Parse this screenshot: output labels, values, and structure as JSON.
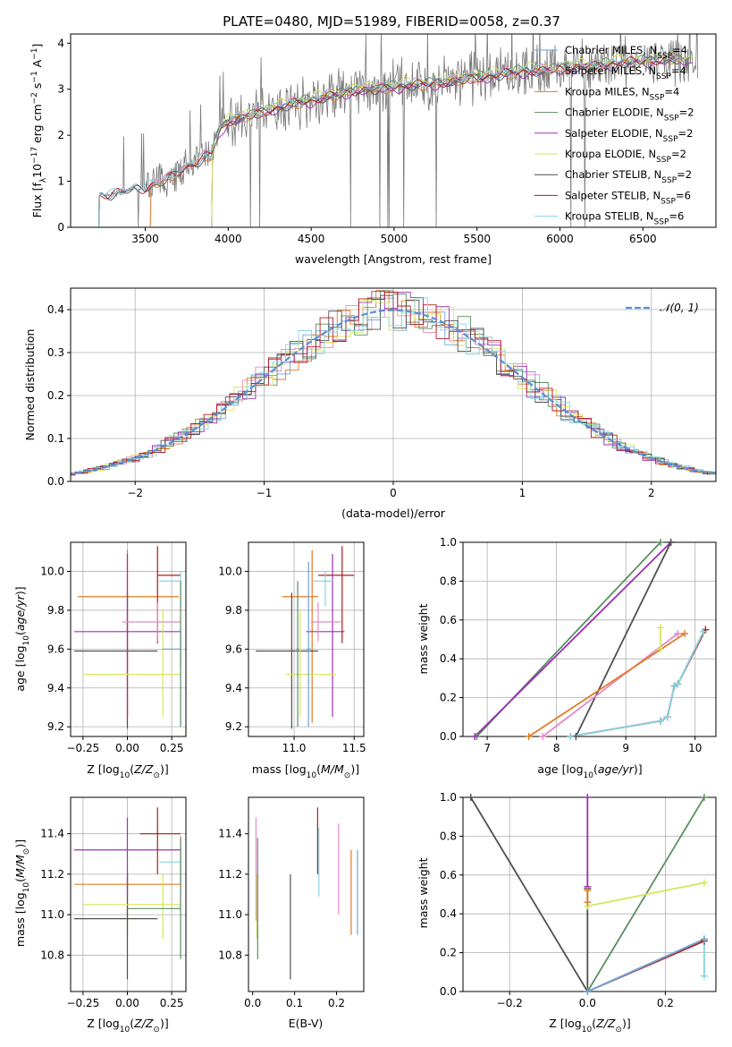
{
  "figure_title": "PLATE=0480, MJD=51989, FIBERID=0058, z=0.37",
  "colors": {
    "chabrier_miles": "#6fa3d9",
    "salpeter_miles": "#e58ac4",
    "kroupa_miles": "#e07b26",
    "chabrier_elodie": "#5a8f62",
    "salpeter_elodie": "#9b30b0",
    "kroupa_elodie": "#d6e65a",
    "chabrier_stelib": "#505050",
    "salpeter_stelib": "#b01c1c",
    "kroupa_stelib": "#86d6e0",
    "data": "#7a7a7a",
    "normal": "#5b8dd9"
  },
  "chart_data": [
    {
      "id": "spectrum",
      "type": "line",
      "xlabel": "wavelength [Angstrom, rest frame]",
      "ylabel": "Flux [f",
      "xlim": [
        3050,
        6940
      ],
      "ylim": [
        0,
        4.2
      ],
      "xticks": [
        3500,
        4000,
        4500,
        5000,
        5500,
        6000,
        6500
      ],
      "yticks": [
        0,
        1,
        2,
        3,
        4
      ],
      "grid": false,
      "legend_position": "top-right",
      "series": [
        {
          "key": "chabrier_miles",
          "name": "Chabrier MILES, N",
          "nssp": "=4",
          "range": [
            3220,
            6730
          ],
          "offset": 0.02
        },
        {
          "key": "salpeter_miles",
          "name": "Salpeter MILES, N",
          "nssp": "=4",
          "range": [
            3530,
            6730
          ],
          "offset": 0.05
        },
        {
          "key": "kroupa_miles",
          "name": "Kroupa MILES, N",
          "nssp": "=4",
          "range": [
            3530,
            6730
          ],
          "offset": -0.03
        },
        {
          "key": "chabrier_elodie",
          "name": "Chabrier ELODIE, N",
          "nssp": "=2",
          "range": [
            3900,
            6800
          ],
          "offset": 0.04
        },
        {
          "key": "salpeter_elodie",
          "name": "Salpeter ELODIE, N",
          "nssp": "=2",
          "range": [
            3900,
            6800
          ],
          "offset": -0.05
        },
        {
          "key": "kroupa_elodie",
          "name": "Kroupa ELODIE, N",
          "nssp": "=2",
          "range": [
            3900,
            6800
          ],
          "offset": 0.08
        },
        {
          "key": "chabrier_stelib",
          "name": "Chabrier STELIB, N",
          "nssp": "=2",
          "range": [
            3220,
            6720
          ],
          "offset": -0.02
        },
        {
          "key": "salpeter_stelib",
          "name": "Salpeter STELIB, N",
          "nssp": "=6",
          "range": [
            3220,
            6720
          ],
          "offset": 0.0
        },
        {
          "key": "kroupa_stelib",
          "name": "Kroupa STELIB, N",
          "nssp": "=6",
          "range": [
            3220,
            6720
          ],
          "offset": 0.03
        }
      ],
      "continuum_x": [
        3210,
        3220,
        3300,
        3400,
        3500,
        3600,
        3700,
        3800,
        3900,
        3950,
        4000,
        4100,
        4200,
        4300,
        4400,
        4500,
        4600,
        4700,
        4800,
        4900,
        5000,
        5100,
        5200,
        5300,
        5400,
        5500,
        5600,
        5700,
        5800,
        5900,
        6000,
        6100,
        6200,
        6300,
        6400,
        6500,
        6600,
        6700,
        6800
      ],
      "continuum_y": [
        0.6,
        0.68,
        0.72,
        0.8,
        0.85,
        1.0,
        1.2,
        1.4,
        1.6,
        2.1,
        2.3,
        2.4,
        2.5,
        2.6,
        2.7,
        2.75,
        2.85,
        2.9,
        3.0,
        3.0,
        3.05,
        3.1,
        3.1,
        3.15,
        3.2,
        3.25,
        3.3,
        3.35,
        3.4,
        3.4,
        3.45,
        3.5,
        3.5,
        3.55,
        3.6,
        3.6,
        3.65,
        3.65,
        3.6
      ]
    },
    {
      "id": "residuals",
      "type": "line",
      "xlabel": "(data-model)/error",
      "ylabel": "Normed distribution",
      "xlim": [
        -2.5,
        2.5
      ],
      "ylim": [
        0,
        0.45
      ],
      "xticks": [
        -2,
        -1,
        0,
        1,
        2
      ],
      "yticks": [
        0.0,
        0.1,
        0.2,
        0.3,
        0.4
      ],
      "grid": true,
      "legend_position": "top-right",
      "legend_label": "𝒩(0, 1)"
    },
    {
      "id": "age_vs_z",
      "type": "scatter",
      "xlabel": "Z [log",
      "ylabel": "age  [log",
      "xlim": [
        -0.32,
        0.33
      ],
      "ylim": [
        9.15,
        10.15
      ],
      "xticks": [
        -0.25,
        0.0,
        0.25
      ],
      "yticks": [
        9.2,
        9.4,
        9.6,
        9.8,
        10.0
      ],
      "grid": true,
      "points": [
        {
          "key": "kroupa_miles",
          "x": 0.0,
          "xerr": [
            0.28,
            0.29
          ],
          "y": 9.87,
          "yerr": [
            0.65,
            0.24
          ]
        },
        {
          "key": "chabrier_stelib",
          "x": 0.0,
          "xerr": [
            0.3,
            0.17
          ],
          "y": 9.59,
          "yerr": [
            0.4,
            0.3
          ]
        },
        {
          "key": "salpeter_elodie",
          "x": 0.0,
          "xerr": [
            0.3,
            0.3
          ],
          "y": 9.69,
          "yerr": [
            0.44,
            0.4
          ]
        },
        {
          "key": "salpeter_stelib",
          "x": 0.17,
          "xerr": [
            0.0,
            0.13
          ],
          "y": 9.98,
          "yerr": [
            0.35,
            0.15
          ]
        },
        {
          "key": "kroupa_elodie",
          "x": 0.2,
          "xerr": [
            0.45,
            0.1
          ],
          "y": 9.47,
          "yerr": [
            0.22,
            0.33
          ]
        },
        {
          "key": "kroupa_stelib",
          "x": 0.3,
          "xerr": [
            0.12,
            0.0
          ],
          "y": 9.95,
          "yerr": [
            0.13,
            0.05
          ]
        },
        {
          "key": "salpeter_miles",
          "x": 0.17,
          "xerr": [
            0.2,
            0.13
          ],
          "y": 9.74,
          "yerr": [
            0.1,
            0.1
          ]
        },
        {
          "key": "chabrier_miles",
          "x": 0.3,
          "xerr": [
            0.1,
            0.0
          ],
          "y": 9.6,
          "yerr": [
            0.1,
            0.1
          ]
        },
        {
          "key": "chabrier_elodie",
          "x": 0.3,
          "xerr": [
            0.0,
            0.0
          ],
          "y": 9.6,
          "yerr": [
            0.4,
            0.35
          ]
        }
      ]
    },
    {
      "id": "age_vs_mass",
      "type": "scatter",
      "xlabel": "mass [log",
      "ylabel": "",
      "xlim": [
        10.62,
        11.58
      ],
      "ylim": [
        9.15,
        10.15
      ],
      "xticks": [
        11.0,
        11.5
      ],
      "yticks": [
        9.2,
        9.4,
        9.6,
        9.8,
        10.0
      ],
      "grid": true,
      "points": [
        {
          "key": "kroupa_miles",
          "x": 11.15,
          "xerr": [
            0.25,
            0.05
          ],
          "y": 9.87,
          "yerr": [
            0.65,
            0.24
          ]
        },
        {
          "key": "chabrier_stelib",
          "x": 10.98,
          "xerr": [
            0.3,
            0.22
          ],
          "y": 9.59,
          "yerr": [
            0.4,
            0.3
          ]
        },
        {
          "key": "salpeter_elodie",
          "x": 11.32,
          "xerr": [
            0.22,
            0.1
          ],
          "y": 9.69,
          "yerr": [
            0.44,
            0.4
          ]
        },
        {
          "key": "salpeter_stelib",
          "x": 11.4,
          "xerr": [
            0.2,
            0.1
          ],
          "y": 9.98,
          "yerr": [
            0.35,
            0.15
          ]
        },
        {
          "key": "kroupa_elodie",
          "x": 11.05,
          "xerr": [
            0.12,
            0.3
          ],
          "y": 9.47,
          "yerr": [
            0.22,
            0.33
          ]
        },
        {
          "key": "kroupa_stelib",
          "x": 11.26,
          "xerr": [
            0.1,
            0.07
          ],
          "y": 9.95,
          "yerr": [
            0.13,
            0.05
          ]
        },
        {
          "key": "salpeter_miles",
          "x": 11.2,
          "xerr": [
            0.06,
            0.19
          ],
          "y": 9.74,
          "yerr": [
            0.1,
            0.1
          ]
        },
        {
          "key": "chabrier_miles",
          "x": 11.12,
          "xerr": [
            0.02,
            0.02
          ],
          "y": 9.6,
          "yerr": [
            0.4,
            0.45
          ]
        },
        {
          "key": "chabrier_elodie",
          "x": 11.03,
          "xerr": [
            0.01,
            0.01
          ],
          "y": 9.6,
          "yerr": [
            0.4,
            0.35
          ]
        }
      ]
    },
    {
      "id": "age_weights",
      "type": "line",
      "xlabel": "age  [log",
      "ylabel": "mass weight",
      "xlim": [
        6.65,
        10.3
      ],
      "ylim": [
        0,
        1
      ],
      "xticks": [
        7,
        8,
        9,
        10
      ],
      "yticks": [
        0.0,
        0.2,
        0.4,
        0.6,
        0.8,
        1.0
      ],
      "grid": true,
      "series": [
        {
          "key": "chabrier_elodie",
          "x": [
            6.85,
            9.5
          ],
          "y": [
            0.0,
            1.0
          ]
        },
        {
          "key": "salpeter_elodie",
          "x": [
            6.82,
            9.65
          ],
          "y": [
            0.0,
            1.0
          ]
        },
        {
          "key": "chabrier_stelib",
          "x": [
            8.28,
            9.65
          ],
          "y": [
            0.0,
            1.0
          ]
        },
        {
          "key": "salpeter_miles",
          "x": [
            7.8,
            9.75
          ],
          "y": [
            0.0,
            0.53
          ]
        },
        {
          "key": "kroupa_miles",
          "x": [
            7.6,
            9.85
          ],
          "y": [
            0.0,
            0.53
          ]
        },
        {
          "key": "kroupa_elodie",
          "x": [
            9.5,
            9.5
          ],
          "y": [
            0.45,
            0.56
          ]
        },
        {
          "key": "chabrier_miles",
          "x": [
            8.2,
            9.5,
            9.6,
            9.7,
            9.75,
            10.12
          ],
          "y": [
            0.0,
            0.08,
            0.1,
            0.26,
            0.27,
            0.54
          ]
        },
        {
          "key": "salpeter_stelib",
          "x": [
            8.2,
            9.5,
            9.6,
            9.7,
            9.75,
            10.15
          ],
          "y": [
            0.0,
            0.08,
            0.1,
            0.26,
            0.27,
            0.55
          ]
        },
        {
          "key": "kroupa_stelib",
          "x": [
            8.2,
            9.5,
            9.6,
            9.7,
            9.75,
            10.12
          ],
          "y": [
            0.0,
            0.08,
            0.1,
            0.26,
            0.27,
            0.54
          ]
        }
      ]
    },
    {
      "id": "mass_vs_z",
      "type": "scatter",
      "xlabel": "Z [log",
      "ylabel": "mass [log",
      "xlim": [
        -0.32,
        0.33
      ],
      "ylim": [
        10.62,
        11.58
      ],
      "xticks": [
        -0.25,
        0.0,
        0.25
      ],
      "yticks": [
        10.8,
        11.0,
        11.2,
        11.4
      ],
      "grid": true,
      "points": [
        {
          "key": "kroupa_miles",
          "x": 0.0,
          "xerr": [
            0.3,
            0.3
          ],
          "y": 11.15,
          "yerr": [
            0.25,
            0.05
          ]
        },
        {
          "key": "chabrier_stelib",
          "x": 0.0,
          "xerr": [
            0.3,
            0.17
          ],
          "y": 10.98,
          "yerr": [
            0.3,
            0.22
          ]
        },
        {
          "key": "salpeter_elodie",
          "x": 0.0,
          "xerr": [
            0.3,
            0.3
          ],
          "y": 11.32,
          "yerr": [
            0.22,
            0.16
          ]
        },
        {
          "key": "salpeter_stelib",
          "x": 0.17,
          "xerr": [
            0.1,
            0.13
          ],
          "y": 11.4,
          "yerr": [
            0.2,
            0.13
          ]
        },
        {
          "key": "kroupa_elodie",
          "x": 0.2,
          "xerr": [
            0.45,
            0.1
          ],
          "y": 11.05,
          "yerr": [
            0.17,
            0.15
          ]
        },
        {
          "key": "kroupa_stelib",
          "x": 0.3,
          "xerr": [
            0.12,
            0.0
          ],
          "y": 11.26,
          "yerr": [
            0.1,
            0.07
          ]
        },
        {
          "key": "salpeter_miles",
          "x": 0.3,
          "xerr": [
            0.0,
            0.0
          ],
          "y": 11.2,
          "yerr": [
            0.06,
            0.19
          ]
        },
        {
          "key": "chabrier_miles",
          "x": 0.3,
          "xerr": [
            0.0,
            0.0
          ],
          "y": 11.1,
          "yerr": [
            0.02,
            0.02
          ]
        },
        {
          "key": "chabrier_elodie",
          "x": 0.3,
          "xerr": [
            0.3,
            0.0
          ],
          "y": 11.03,
          "yerr": [
            0.25,
            0.35
          ]
        }
      ]
    },
    {
      "id": "mass_vs_ebv",
      "type": "scatter",
      "xlabel": "E(B-V)",
      "ylabel": "",
      "xlim": [
        -0.01,
        0.265
      ],
      "ylim": [
        10.62,
        11.58
      ],
      "xticks": [
        0.0,
        0.1,
        0.2
      ],
      "yticks": [
        10.8,
        11.0,
        11.2,
        11.4
      ],
      "grid": false,
      "points": [
        {
          "key": "salpeter_miles",
          "x": 0.008,
          "y": 11.32,
          "yerr": [
            0.35,
            0.16
          ]
        },
        {
          "key": "kroupa_elodie",
          "x": 0.01,
          "y": 11.05,
          "yerr": [
            0.17,
            0.15
          ]
        },
        {
          "key": "chabrier_elodie",
          "x": 0.012,
          "y": 11.03,
          "yerr": [
            0.25,
            0.35
          ]
        },
        {
          "key": "chabrier_stelib",
          "x": 0.09,
          "y": 10.98,
          "yerr": [
            0.3,
            0.22
          ]
        },
        {
          "key": "salpeter_stelib",
          "x": 0.155,
          "y": 11.4,
          "yerr": [
            0.2,
            0.13
          ]
        },
        {
          "key": "kroupa_stelib",
          "x": 0.158,
          "y": 11.26,
          "yerr": [
            0.17,
            0.17
          ]
        },
        {
          "key": "salpeter_miles",
          "x": 0.205,
          "y": 11.2,
          "yerr": [
            0.2,
            0.25
          ]
        },
        {
          "key": "kroupa_miles",
          "x": 0.235,
          "y": 11.15,
          "yerr": [
            0.25,
            0.17
          ]
        },
        {
          "key": "chabrier_miles",
          "x": 0.25,
          "y": 11.1,
          "yerr": [
            0.2,
            0.22
          ]
        }
      ]
    },
    {
      "id": "z_weights",
      "type": "line",
      "xlabel": "Z [log",
      "ylabel": "mass weight",
      "xlim": [
        -0.32,
        0.33
      ],
      "ylim": [
        0,
        1
      ],
      "xticks": [
        -0.2,
        0.0,
        0.2
      ],
      "yticks": [
        0.0,
        0.2,
        0.4,
        0.6,
        0.8,
        1.0
      ],
      "grid": true,
      "series": [
        {
          "key": "chabrier_stelib",
          "x": [
            -0.3,
            0.0,
            0.0
          ],
          "y": [
            1.0,
            0.0,
            0.53
          ]
        },
        {
          "key": "chabrier_elodie",
          "x": [
            0.0,
            0.3
          ],
          "y": [
            0.0,
            1.0
          ]
        },
        {
          "key": "salpeter_elodie",
          "x": [
            0.0,
            0.0
          ],
          "y": [
            1.0,
            0.54
          ]
        },
        {
          "key": "kroupa_elodie",
          "x": [
            0.0,
            0.3
          ],
          "y": [
            0.44,
            0.56
          ]
        },
        {
          "key": "salpeter_stelib",
          "x": [
            0.0,
            0.3
          ],
          "y": [
            0.0,
            0.26
          ]
        },
        {
          "key": "kroupa_stelib",
          "x": [
            0.0,
            0.3,
            0.3
          ],
          "y": [
            0.0,
            0.27,
            0.08
          ]
        },
        {
          "key": "chabrier_miles",
          "x": [
            0.0,
            0.3
          ],
          "y": [
            0.0,
            0.27
          ]
        },
        {
          "key": "kroupa_miles",
          "x": [
            0.0,
            0.0
          ],
          "y": [
            0.46,
            0.52
          ]
        }
      ]
    }
  ]
}
